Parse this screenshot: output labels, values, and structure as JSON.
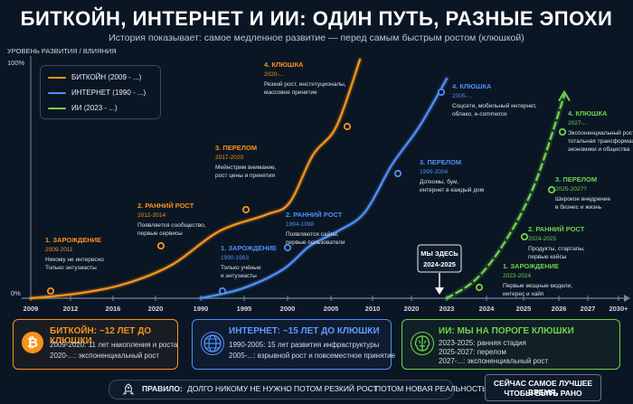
{
  "header": {
    "title": "БИТКОЙН, ИНТЕРНЕТ И ИИ: ОДИН ПУТЬ, РАЗНЫЕ ЭПОХИ",
    "subtitle": "История показывает: самое медленное развитие — перед самым быстрым ростом (клюшкой)"
  },
  "colors": {
    "bitcoin": "#f7931a",
    "internet": "#4f8ef7",
    "ai": "#6fd14a",
    "background": "#0b1624",
    "axis": "#6f88a8"
  },
  "chart_data": {
    "type": "line",
    "ylabel": "УРОВЕНЬ РАЗВИТИЯ / ВЛИЯНИЯ",
    "y_ticks": [
      "100%",
      "0%"
    ],
    "ylim": [
      0,
      100
    ],
    "x_tick_labels": [
      "2009",
      "2012",
      "2016",
      "2020",
      "1990",
      "1995",
      "2000",
      "2005",
      "2010",
      "2020",
      "2023",
      "2024",
      "2025",
      "2026",
      "2027",
      "2030+"
    ],
    "legend": {
      "placement": "top-left",
      "entries": [
        "БИТКОЙН (2009 - ...)",
        "ИНТЕРНЕТ (1990 - ...)",
        "ИИ (2023 - ...)"
      ]
    },
    "series": [
      {
        "name": "БИТКОЙН (2009 - ...)",
        "points": [
          [
            2009,
            0
          ],
          [
            2011,
            2
          ],
          [
            2013,
            6
          ],
          [
            2015,
            14
          ],
          [
            2017,
            28
          ],
          [
            2019,
            35
          ],
          [
            2020,
            40
          ],
          [
            2021,
            60
          ],
          [
            2022,
            72
          ],
          [
            2023,
            100
          ]
        ],
        "phases": [
          {
            "title": "1. ЗАРОЖДЕНИЕ",
            "years": "2009-2011",
            "text": [
              "Никому не интересно",
              "Только энтузиасты"
            ]
          },
          {
            "title": "2. РАННИЙ РОСТ",
            "years": "2012-2014",
            "text": [
              "Появляется сообщество,",
              "первые сервисы"
            ]
          },
          {
            "title": "3. ПЕРЕЛОМ",
            "years": "2017-2020",
            "text": [
              "Мейнстрим внимание,",
              "рост цены и принятия"
            ]
          },
          {
            "title": "4. КЛЮШКА",
            "years": "2020-...",
            "text": [
              "Резкий рост, институционалы,",
              "массовое принятие"
            ]
          }
        ]
      },
      {
        "name": "ИНТЕРНЕТ (1990 - ...)",
        "points": [
          [
            1990,
            0
          ],
          [
            1993,
            4
          ],
          [
            1996,
            12
          ],
          [
            1998,
            22
          ],
          [
            2000,
            28
          ],
          [
            2002,
            36
          ],
          [
            2004,
            56
          ],
          [
            2006,
            72
          ],
          [
            2008,
            92
          ]
        ],
        "phases": [
          {
            "title": "1. ЗАРОЖДЕНИЕ",
            "years": "1990-1993",
            "text": [
              "Только учёные",
              "и энтузиасты"
            ]
          },
          {
            "title": "2. РАННИЙ РОСТ",
            "years": "1994-1998",
            "text": [
              "Появляются сайты,",
              "первые пользователи"
            ]
          },
          {
            "title": "3. ПЕРЕЛОМ",
            "years": "1999-2004",
            "text": [
              "Доткомы, бум,",
              "интернет в каждый дом"
            ]
          },
          {
            "title": "4. КЛЮШКА",
            "years": "2005-...",
            "text": [
              "Соцсети, мобильный интернет,",
              "облако, e-commerce"
            ]
          }
        ]
      },
      {
        "name": "ИИ (2023 - ...)",
        "points": [
          [
            2023,
            0
          ],
          [
            2024,
            8
          ],
          [
            2025,
            24
          ],
          [
            2026,
            48
          ],
          [
            2027,
            85
          ]
        ],
        "style": "dashed",
        "phases": [
          {
            "title": "1. ЗАРОЖДЕНИЕ",
            "years": "2023-2024",
            "text": [
              "Первые мощные модели,",
              "интерес и хайп"
            ]
          },
          {
            "title": "2. РАННИЙ РОСТ",
            "years": "2024-2025",
            "text": [
              "Продукты, стартапы,",
              "первые кейсы"
            ]
          },
          {
            "title": "3. ПЕРЕЛОМ",
            "years": "2025-2027?",
            "text": [
              "Широкое внедрение",
              "в бизнес и жизнь"
            ]
          },
          {
            "title": "4. КЛЮШКА",
            "years": "2027-...",
            "text": [
              "Экспоненциальный рост,",
              "тотальная трансформация",
              "экономики и общества"
            ]
          }
        ]
      }
    ],
    "annotation": {
      "label": "МЫ ЗДЕСЬ",
      "years": "2024-2025"
    }
  },
  "cards": [
    {
      "icon": "bitcoin-icon",
      "glyph": "₿",
      "title": "БИТКОЙН: ~12 ЛЕТ ДО КЛЮШКИ",
      "lines": [
        "2009-2020: 11 лет накопления и роста",
        "2020-...: экспоненциальный рост"
      ]
    },
    {
      "icon": "globe-icon",
      "glyph": "",
      "title": "ИНТЕРНЕТ: ~15 ЛЕТ ДО КЛЮШКИ",
      "lines": [
        "1990-2005: 15 лет развития инфраструктуры",
        "2005-...: взрывной рост и повсеместное принятие"
      ]
    },
    {
      "icon": "brain-icon",
      "glyph": "",
      "title": "ИИ: МЫ НА ПОРОГЕ КЛЮШКИ",
      "lines": [
        "2023-2025: ранняя стадия",
        "2025-2027: перелом",
        "2027-...: экспоненциальный рост"
      ]
    }
  ],
  "rule": {
    "label": "ПРАВИЛО:",
    "steps": [
      "ДОЛГО НИКОМУ НЕ НУЖНО",
      "ПОТОМ РЕЗКИЙ РОСТ",
      "ПОТОМ НОВАЯ РЕАЛЬНОСТЬ"
    ],
    "arrow": "→"
  },
  "cta": {
    "line1": "СЕЙЧАС САМОЕ ЛУЧШЕЕ ВРЕМЯ,",
    "line2": "ЧТОБЫ БЫТЬ РАНО"
  }
}
